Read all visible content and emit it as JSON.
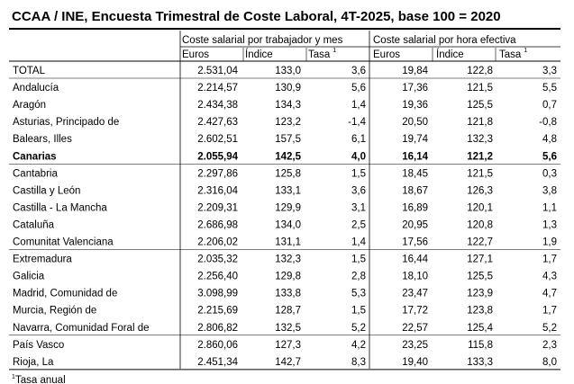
{
  "title": "CCAA / INE, Encuesta Trimestral de Coste Laboral, 4T-2025, base 100 = 2020",
  "table": {
    "groups": [
      "Coste salarial por trabajador y mes",
      "Coste salarial por hora efectiva"
    ],
    "columns": [
      {
        "label": "Euros"
      },
      {
        "label": "Índice"
      },
      {
        "label": "Tasa",
        "note": "1"
      },
      {
        "label": "Euros"
      },
      {
        "label": "Índice"
      },
      {
        "label": "Tasa",
        "note": "1"
      }
    ],
    "rows": [
      {
        "name": "TOTAL",
        "values": [
          "2.531,04",
          "133,0",
          "3,6",
          "19,84",
          "122,8",
          "3,3"
        ]
      },
      {
        "name": "Andalucía",
        "values": [
          "2.214,57",
          "130,9",
          "5,6",
          "17,36",
          "121,5",
          "5,5"
        ]
      },
      {
        "name": "Aragón",
        "values": [
          "2.434,38",
          "134,3",
          "1,4",
          "19,36",
          "125,5",
          "0,7"
        ]
      },
      {
        "name": "Asturias, Principado de",
        "values": [
          "2.427,63",
          "123,2",
          "-1,4",
          "20,50",
          "121,8",
          "-0,8"
        ]
      },
      {
        "name": "Balears, Illes",
        "values": [
          "2.602,51",
          "157,5",
          "6,1",
          "19,74",
          "132,3",
          "4,8"
        ]
      },
      {
        "name": "Canarias",
        "bold": true,
        "values": [
          "2.055,94",
          "142,5",
          "4,0",
          "16,14",
          "121,2",
          "5,6"
        ]
      },
      {
        "name": "Cantabria",
        "values": [
          "2.297,86",
          "125,8",
          "1,5",
          "18,45",
          "121,5",
          "0,3"
        ]
      },
      {
        "name": "Castilla y León",
        "values": [
          "2.316,04",
          "133,1",
          "3,6",
          "18,67",
          "126,3",
          "3,8"
        ]
      },
      {
        "name": "Castilla - La Mancha",
        "values": [
          "2.209,31",
          "129,9",
          "3,1",
          "16,89",
          "120,1",
          "1,1"
        ]
      },
      {
        "name": "Cataluña",
        "values": [
          "2.686,98",
          "134,0",
          "2,5",
          "20,95",
          "120,8",
          "1,3"
        ]
      },
      {
        "name": "Comunitat Valenciana",
        "values": [
          "2.206,02",
          "131,1",
          "1,4",
          "17,56",
          "122,7",
          "1,9"
        ]
      },
      {
        "name": "Extremadura",
        "values": [
          "2.035,32",
          "132,3",
          "1,5",
          "16,44",
          "127,1",
          "1,7"
        ]
      },
      {
        "name": "Galicia",
        "values": [
          "2.256,40",
          "129,8",
          "2,8",
          "18,10",
          "125,5",
          "4,3"
        ]
      },
      {
        "name": "Madrid, Comunidad de",
        "values": [
          "3.098,99",
          "133,8",
          "5,3",
          "23,47",
          "123,9",
          "4,7"
        ]
      },
      {
        "name": "Murcia, Región de",
        "values": [
          "2.215,69",
          "128,7",
          "1,5",
          "17,72",
          "123,8",
          "1,7"
        ]
      },
      {
        "name": "Navarra, Comunidad Foral de",
        "values": [
          "2.806,82",
          "132,5",
          "5,2",
          "22,57",
          "125,4",
          "5,2"
        ]
      },
      {
        "name": "País Vasco",
        "values": [
          "2.860,06",
          "127,3",
          "4,2",
          "23,25",
          "115,8",
          "2,3"
        ]
      },
      {
        "name": "Rioja, La",
        "values": [
          "2.451,34",
          "142,7",
          "8,3",
          "19,40",
          "133,3",
          "8,0"
        ]
      }
    ]
  },
  "footnote": {
    "mark": "1",
    "text": "Tasa anual"
  }
}
